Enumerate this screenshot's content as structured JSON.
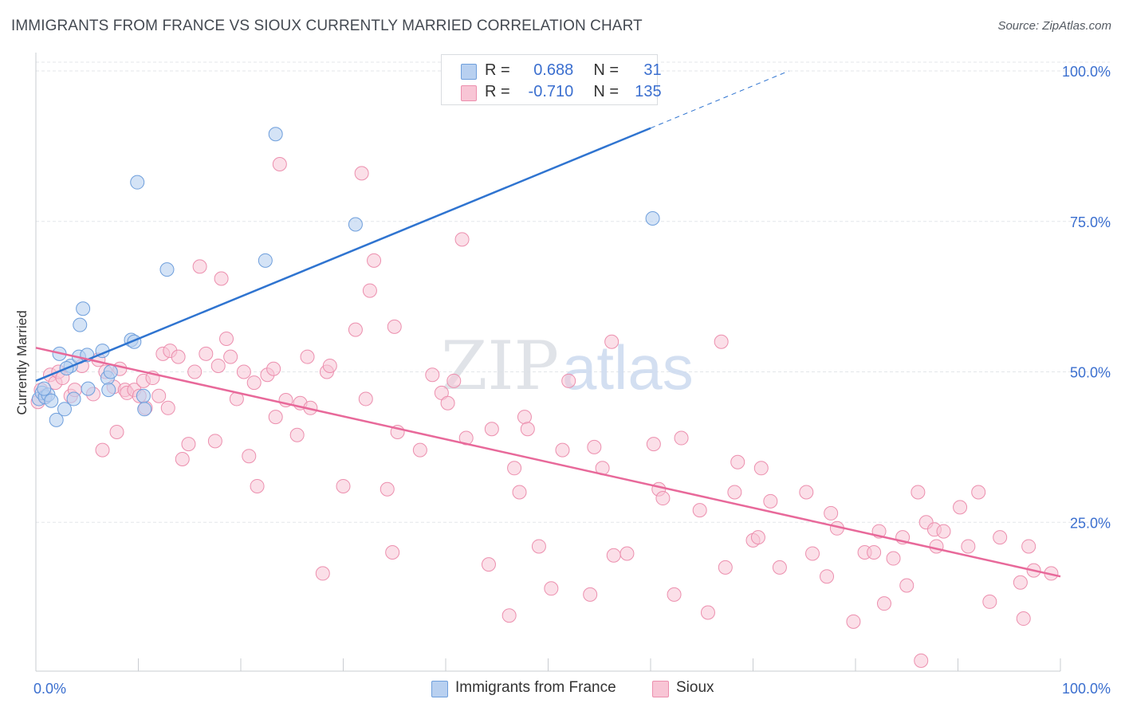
{
  "header": {
    "title": "IMMIGRANTS FROM FRANCE VS SIOUX CURRENTLY MARRIED CORRELATION CHART",
    "source": "Source: ZipAtlas.com"
  },
  "legend": {
    "series1": {
      "r_label": "R =",
      "r_value": "0.688",
      "n_label": "N =",
      "n_value": "31"
    },
    "series2": {
      "r_label": "R =",
      "r_value": "-0.710",
      "n_label": "N =",
      "n_value": "135"
    }
  },
  "watermark": {
    "zip": "ZIP",
    "atlas": "atlas"
  },
  "colors": {
    "blue_fill": "#b8d0f0",
    "blue_stroke": "#6f9fdc",
    "blue_line": "#2f74d0",
    "pink_fill": "#f8c5d5",
    "pink_stroke": "#ec8fae",
    "pink_line": "#e8699a",
    "axis_text": "#3b6fcf",
    "grid": "#e3e6ea"
  },
  "chart_data": {
    "type": "scatter",
    "title": "IMMIGRANTS FROM FRANCE VS SIOUX CURRENTLY MARRIED CORRELATION CHART",
    "xlabel": "",
    "ylabel": "Currently Married",
    "xlim": [
      0,
      100
    ],
    "ylim": [
      0,
      100
    ],
    "x_tick_labels": [
      "0.0%",
      "100.0%"
    ],
    "y_ticks": [
      25,
      50,
      75,
      100
    ],
    "y_tick_labels": [
      "25.0%",
      "50.0%",
      "75.0%",
      "100.0%"
    ],
    "series": [
      {
        "name": "Immigrants from France",
        "r": 0.688,
        "n": 31,
        "trend": {
          "x0": 0,
          "y0": 48.5,
          "x1": 60,
          "y1": 90.5,
          "dash_to_x": 73.5,
          "dash_to_y": 100
        },
        "points": [
          [
            0.3,
            45.5
          ],
          [
            0.6,
            46.5
          ],
          [
            0.9,
            45.8
          ],
          [
            1.2,
            46.2
          ],
          [
            1.5,
            45.2
          ],
          [
            0.8,
            47.2
          ],
          [
            2.0,
            42.0
          ],
          [
            2.3,
            53.0
          ],
          [
            2.8,
            43.8
          ],
          [
            3.4,
            51.0
          ],
          [
            3.7,
            45.5
          ],
          [
            4.2,
            52.5
          ],
          [
            4.3,
            57.8
          ],
          [
            4.6,
            60.5
          ],
          [
            5.0,
            52.8
          ],
          [
            6.5,
            53.5
          ],
          [
            7.0,
            49.0
          ],
          [
            7.3,
            50.0
          ],
          [
            7.1,
            47.0
          ],
          [
            9.3,
            55.3
          ],
          [
            9.6,
            55.0
          ],
          [
            10.5,
            46.0
          ],
          [
            10.6,
            43.8
          ],
          [
            5.1,
            47.2
          ],
          [
            3.0,
            50.6
          ],
          [
            9.9,
            81.5
          ],
          [
            12.8,
            67.0
          ],
          [
            22.4,
            68.5
          ],
          [
            23.4,
            89.5
          ],
          [
            31.2,
            74.5
          ],
          [
            60.2,
            75.5
          ]
        ]
      },
      {
        "name": "Sioux",
        "r": -0.71,
        "n": 135,
        "trend": {
          "x0": 0,
          "y0": 54.0,
          "x1": 100,
          "y1": 16.0
        },
        "points": [
          [
            0.2,
            45.0
          ],
          [
            0.5,
            47.0
          ],
          [
            0.9,
            46.0
          ],
          [
            1.4,
            49.5
          ],
          [
            1.9,
            48.2
          ],
          [
            2.2,
            50.0
          ],
          [
            2.6,
            49.0
          ],
          [
            3.4,
            46.0
          ],
          [
            3.8,
            47.0
          ],
          [
            4.5,
            51.0
          ],
          [
            5.6,
            46.3
          ],
          [
            6.1,
            52.0
          ],
          [
            6.5,
            37.0
          ],
          [
            6.8,
            50.0
          ],
          [
            7.6,
            47.5
          ],
          [
            7.9,
            40.0
          ],
          [
            8.2,
            50.5
          ],
          [
            8.7,
            47.0
          ],
          [
            8.9,
            46.5
          ],
          [
            9.6,
            47.0
          ],
          [
            10.1,
            46.0
          ],
          [
            10.5,
            48.5
          ],
          [
            10.7,
            44.0
          ],
          [
            11.4,
            49.0
          ],
          [
            12.0,
            46.0
          ],
          [
            12.4,
            53.0
          ],
          [
            12.9,
            44.0
          ],
          [
            13.1,
            53.5
          ],
          [
            13.9,
            52.5
          ],
          [
            14.3,
            35.5
          ],
          [
            14.9,
            38.0
          ],
          [
            15.5,
            50.0
          ],
          [
            16.0,
            67.5
          ],
          [
            16.6,
            53.0
          ],
          [
            17.5,
            38.5
          ],
          [
            17.8,
            51.0
          ],
          [
            18.1,
            65.5
          ],
          [
            18.6,
            55.5
          ],
          [
            19.0,
            52.5
          ],
          [
            19.6,
            45.5
          ],
          [
            20.3,
            50.0
          ],
          [
            20.8,
            36.0
          ],
          [
            21.3,
            48.2
          ],
          [
            21.6,
            31.0
          ],
          [
            22.6,
            49.5
          ],
          [
            23.2,
            50.5
          ],
          [
            23.4,
            42.5
          ],
          [
            23.8,
            84.5
          ],
          [
            24.4,
            45.3
          ],
          [
            25.5,
            39.5
          ],
          [
            25.8,
            44.8
          ],
          [
            26.8,
            44.0
          ],
          [
            26.5,
            52.5
          ],
          [
            28.4,
            50.0
          ],
          [
            28.7,
            51.0
          ],
          [
            28.0,
            16.5
          ],
          [
            30.0,
            31.0
          ],
          [
            31.2,
            57.0
          ],
          [
            31.8,
            83.0
          ],
          [
            32.2,
            45.5
          ],
          [
            32.6,
            63.5
          ],
          [
            33.0,
            68.5
          ],
          [
            34.3,
            30.5
          ],
          [
            34.8,
            20.0
          ],
          [
            35.0,
            57.5
          ],
          [
            35.3,
            40.0
          ],
          [
            37.5,
            37.0
          ],
          [
            38.7,
            49.5
          ],
          [
            39.6,
            46.5
          ],
          [
            40.2,
            44.8
          ],
          [
            40.8,
            48.5
          ],
          [
            41.6,
            72.0
          ],
          [
            42.0,
            39.0
          ],
          [
            44.2,
            18.0
          ],
          [
            44.5,
            40.5
          ],
          [
            46.2,
            9.5
          ],
          [
            46.7,
            34.0
          ],
          [
            47.2,
            30.0
          ],
          [
            47.7,
            42.5
          ],
          [
            48.0,
            40.5
          ],
          [
            49.1,
            21.0
          ],
          [
            50.3,
            14.0
          ],
          [
            51.4,
            37.0
          ],
          [
            52.0,
            48.5
          ],
          [
            54.1,
            13.0
          ],
          [
            54.5,
            37.5
          ],
          [
            55.3,
            34.0
          ],
          [
            56.2,
            55.0
          ],
          [
            56.4,
            19.5
          ],
          [
            57.7,
            19.8
          ],
          [
            60.3,
            38.0
          ],
          [
            60.8,
            30.5
          ],
          [
            61.2,
            29.0
          ],
          [
            62.3,
            13.0
          ],
          [
            63.0,
            39.0
          ],
          [
            64.8,
            27.0
          ],
          [
            65.6,
            10.0
          ],
          [
            66.9,
            55.0
          ],
          [
            67.3,
            17.5
          ],
          [
            68.2,
            30.0
          ],
          [
            68.5,
            35.0
          ],
          [
            70.0,
            22.0
          ],
          [
            70.5,
            22.5
          ],
          [
            70.8,
            34.0
          ],
          [
            71.7,
            28.5
          ],
          [
            72.6,
            17.5
          ],
          [
            75.2,
            30.0
          ],
          [
            75.8,
            19.8
          ],
          [
            77.2,
            16.0
          ],
          [
            77.6,
            26.5
          ],
          [
            78.2,
            24.0
          ],
          [
            79.8,
            8.5
          ],
          [
            80.9,
            20.0
          ],
          [
            81.8,
            20.0
          ],
          [
            82.3,
            23.5
          ],
          [
            82.8,
            11.5
          ],
          [
            83.7,
            19.0
          ],
          [
            84.6,
            22.5
          ],
          [
            85.0,
            14.5
          ],
          [
            86.1,
            30.0
          ],
          [
            86.4,
            2.0
          ],
          [
            86.9,
            25.0
          ],
          [
            87.7,
            23.8
          ],
          [
            87.9,
            21.0
          ],
          [
            88.6,
            23.5
          ],
          [
            90.2,
            27.5
          ],
          [
            91.0,
            21.0
          ],
          [
            92.0,
            30.0
          ],
          [
            93.1,
            11.8
          ],
          [
            94.1,
            22.5
          ],
          [
            96.1,
            15.0
          ],
          [
            96.4,
            9.0
          ],
          [
            96.9,
            21.0
          ],
          [
            97.4,
            17.0
          ],
          [
            99.1,
            16.5
          ]
        ]
      }
    ]
  },
  "bottom_legend": {
    "item1": "Immigrants from France",
    "item2": "Sioux"
  }
}
